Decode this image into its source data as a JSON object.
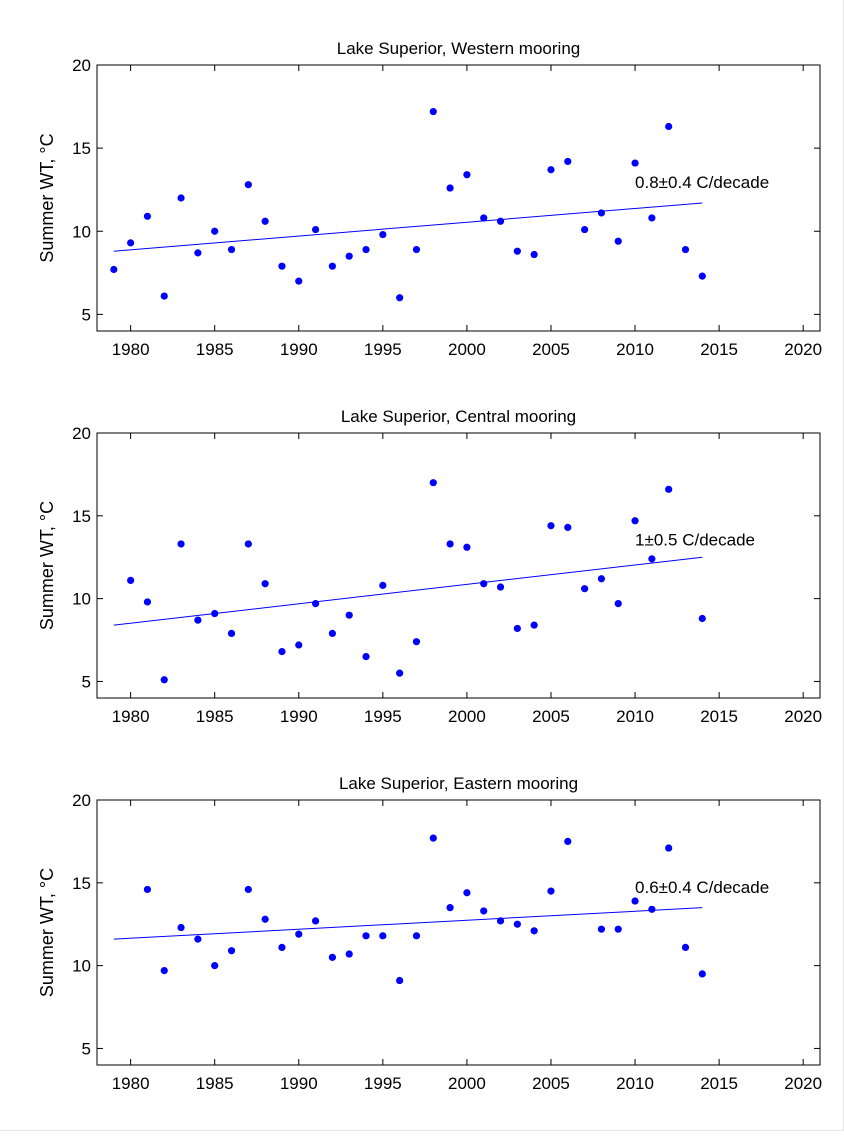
{
  "chart_data": [
    {
      "type": "scatter",
      "title": "Lake Superior, Western mooring",
      "ylabel": "Summer WT, °C",
      "xlabel": "",
      "xlim": [
        1978,
        2021
      ],
      "ylim": [
        4,
        20
      ],
      "xticks": [
        1980,
        1985,
        1990,
        1995,
        2000,
        2005,
        2010,
        2015,
        2020
      ],
      "yticks": [
        5,
        10,
        15,
        20
      ],
      "grid": false,
      "marker_color": "#0000ff",
      "series": [
        {
          "x": [
            1979,
            1980,
            1981,
            1982,
            1983,
            1984,
            1985,
            1986,
            1987,
            1988,
            1989,
            1990,
            1991,
            1992,
            1993,
            1994,
            1995,
            1996,
            1997,
            1998,
            1999,
            2000,
            2001,
            2002,
            2003,
            2004,
            2005,
            2006,
            2007,
            2008,
            2009,
            2010,
            2011,
            2012,
            2013,
            2014
          ],
          "y": [
            7.7,
            9.3,
            10.9,
            6.1,
            12.0,
            8.7,
            10.0,
            8.9,
            12.8,
            10.6,
            7.9,
            7.0,
            10.1,
            7.9,
            8.5,
            8.9,
            9.8,
            6.0,
            8.9,
            17.2,
            12.6,
            13.4,
            10.8,
            10.6,
            8.8,
            8.6,
            13.7,
            14.2,
            10.1,
            11.1,
            9.4,
            14.1,
            10.8,
            16.3,
            8.9,
            7.3
          ]
        }
      ],
      "trend": {
        "x": [
          1979,
          2014
        ],
        "y": [
          8.8,
          11.7
        ],
        "color": "#0000ff"
      },
      "annotation": {
        "prefix": "0.8",
        "pm": "±",
        "suffix": "0.4 C/decade",
        "x": 2010,
        "y": 12.6
      }
    },
    {
      "type": "scatter",
      "title": "Lake Superior, Central mooring",
      "ylabel": "Summer WT, °C",
      "xlabel": "",
      "xlim": [
        1978,
        2021
      ],
      "ylim": [
        4,
        20
      ],
      "xticks": [
        1980,
        1985,
        1990,
        1995,
        2000,
        2005,
        2010,
        2015,
        2020
      ],
      "yticks": [
        5,
        10,
        15,
        20
      ],
      "grid": false,
      "marker_color": "#0000ff",
      "series": [
        {
          "x": [
            1980,
            1981,
            1982,
            1983,
            1984,
            1985,
            1986,
            1987,
            1988,
            1989,
            1990,
            1991,
            1992,
            1993,
            1994,
            1995,
            1996,
            1997,
            1998,
            1999,
            2000,
            2001,
            2002,
            2003,
            2004,
            2005,
            2006,
            2007,
            2008,
            2009,
            2010,
            2011,
            2012,
            2014
          ],
          "y": [
            11.1,
            9.8,
            5.1,
            13.3,
            8.7,
            9.1,
            7.9,
            13.3,
            10.9,
            6.8,
            7.2,
            9.7,
            7.9,
            9.0,
            6.5,
            10.8,
            5.5,
            7.4,
            17.0,
            13.3,
            13.1,
            10.9,
            10.7,
            8.2,
            8.4,
            14.4,
            14.3,
            10.6,
            11.2,
            9.7,
            14.7,
            12.4,
            16.6,
            8.8
          ]
        }
      ],
      "trend": {
        "x": [
          1979,
          2014
        ],
        "y": [
          8.4,
          12.5
        ],
        "color": "#0000ff"
      },
      "annotation": {
        "prefix": "1",
        "pm": "±",
        "suffix": "0.5 C/decade",
        "x": 2010,
        "y": 13.2
      }
    },
    {
      "type": "scatter",
      "title": "Lake Superior, Eastern mooring",
      "ylabel": "Summer WT, °C",
      "xlabel": "",
      "xlim": [
        1978,
        2021
      ],
      "ylim": [
        4,
        20
      ],
      "xticks": [
        1980,
        1985,
        1990,
        1995,
        2000,
        2005,
        2010,
        2015,
        2020
      ],
      "yticks": [
        5,
        10,
        15,
        20
      ],
      "grid": false,
      "marker_color": "#0000ff",
      "series": [
        {
          "x": [
            1981,
            1982,
            1983,
            1984,
            1985,
            1986,
            1987,
            1988,
            1989,
            1990,
            1991,
            1992,
            1993,
            1994,
            1995,
            1996,
            1997,
            1998,
            1999,
            2000,
            2001,
            2002,
            2003,
            2004,
            2005,
            2006,
            2008,
            2009,
            2010,
            2011,
            2012,
            2013,
            2014
          ],
          "y": [
            14.6,
            9.7,
            12.3,
            11.6,
            10.0,
            10.9,
            14.6,
            12.8,
            11.1,
            11.9,
            12.7,
            10.5,
            10.7,
            11.8,
            11.8,
            9.1,
            11.8,
            17.7,
            13.5,
            14.4,
            13.3,
            12.7,
            12.5,
            12.1,
            14.5,
            17.5,
            12.2,
            12.2,
            13.9,
            13.4,
            17.1,
            11.1,
            9.5
          ]
        }
      ],
      "trend": {
        "x": [
          1979,
          2014
        ],
        "y": [
          11.6,
          13.5
        ],
        "color": "#0000ff"
      },
      "annotation": {
        "prefix": "0.6",
        "pm": "±",
        "suffix": "0.4 C/decade",
        "x": 2010,
        "y": 14.4
      }
    }
  ]
}
